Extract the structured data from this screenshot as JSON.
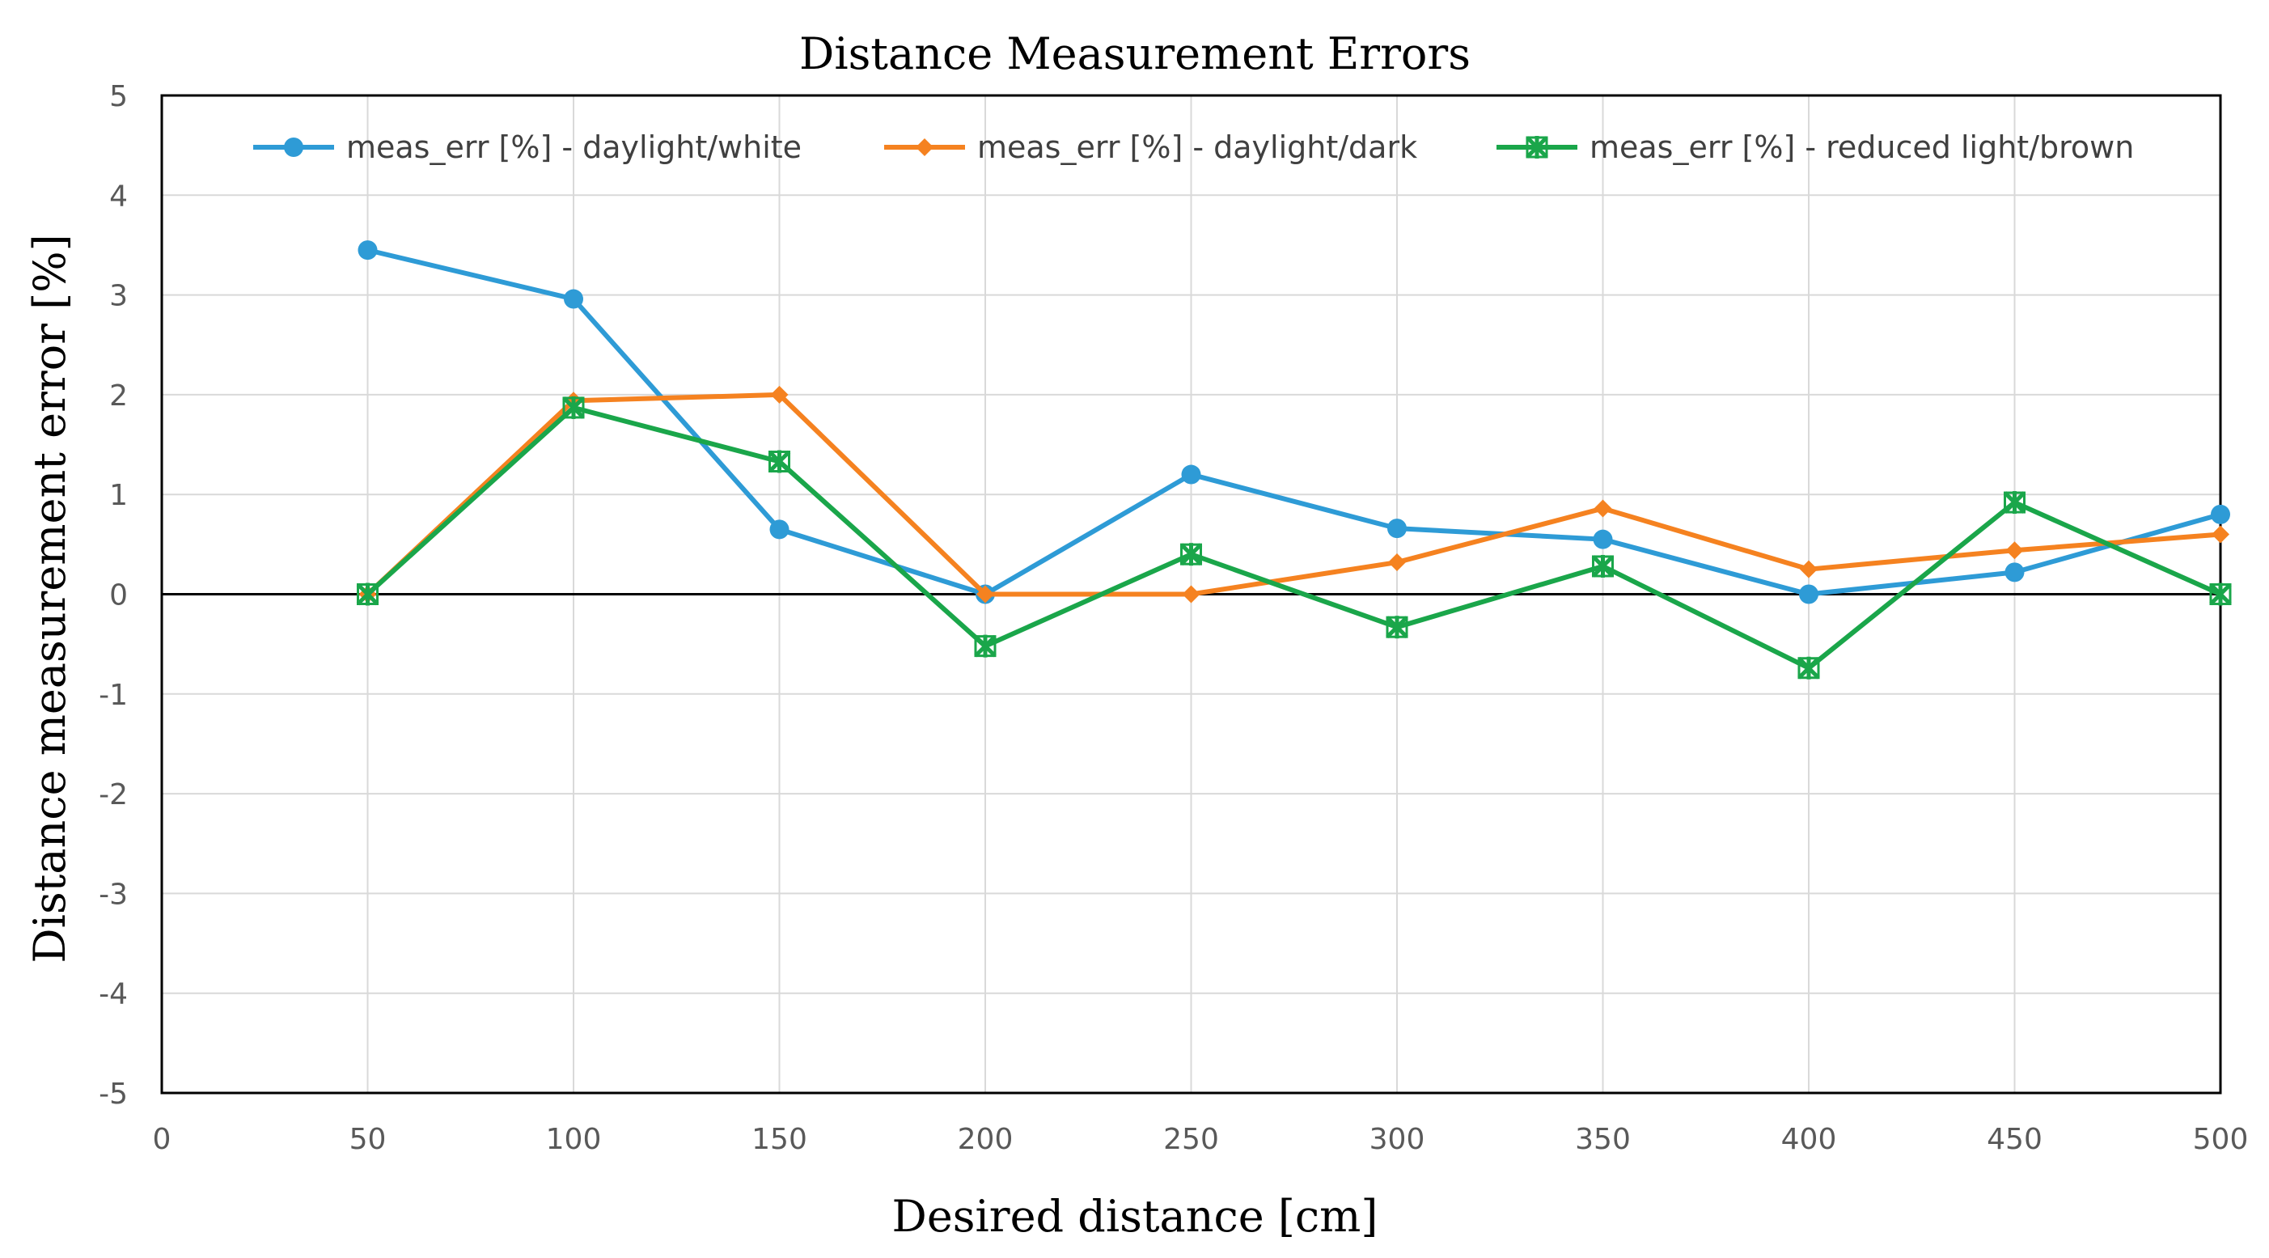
{
  "chart_data": {
    "type": "line",
    "title": "Distance Measurement Errors",
    "xlabel": "Desired distance [cm]",
    "ylabel": "Distance measurement error [%]",
    "xlim": [
      0,
      500
    ],
    "ylim": [
      -5,
      5
    ],
    "xticks": [
      "0",
      "50",
      "100",
      "150",
      "200",
      "250",
      "300",
      "350",
      "400",
      "450",
      "500"
    ],
    "yticks": [
      "5",
      "4",
      "3",
      "2",
      "1",
      "0",
      "-1",
      "-2",
      "-3",
      "-4",
      "-5"
    ],
    "x": [
      50,
      100,
      150,
      200,
      250,
      300,
      350,
      400,
      450,
      500
    ],
    "grid": "vertical",
    "legend_position": "top",
    "series": [
      {
        "name": "meas_err [%] - daylight/white",
        "color": "#2E9BD6",
        "marker": "circle",
        "values": [
          3.45,
          2.96,
          0.65,
          0.0,
          1.2,
          0.66,
          0.55,
          0.0,
          0.22,
          0.8
        ]
      },
      {
        "name": "meas_err [%] - daylight/dark",
        "color": "#F58220",
        "marker": "diamond",
        "values": [
          0.0,
          1.94,
          2.0,
          0.0,
          0.0,
          0.32,
          0.86,
          0.25,
          0.44,
          0.6
        ]
      },
      {
        "name": "meas_err [%] - reduced light/brown",
        "color": "#1AA64A",
        "marker": "star",
        "values": [
          0.0,
          1.87,
          1.33,
          -0.52,
          0.4,
          -0.33,
          0.28,
          -0.74,
          0.92,
          0.0
        ]
      }
    ]
  }
}
